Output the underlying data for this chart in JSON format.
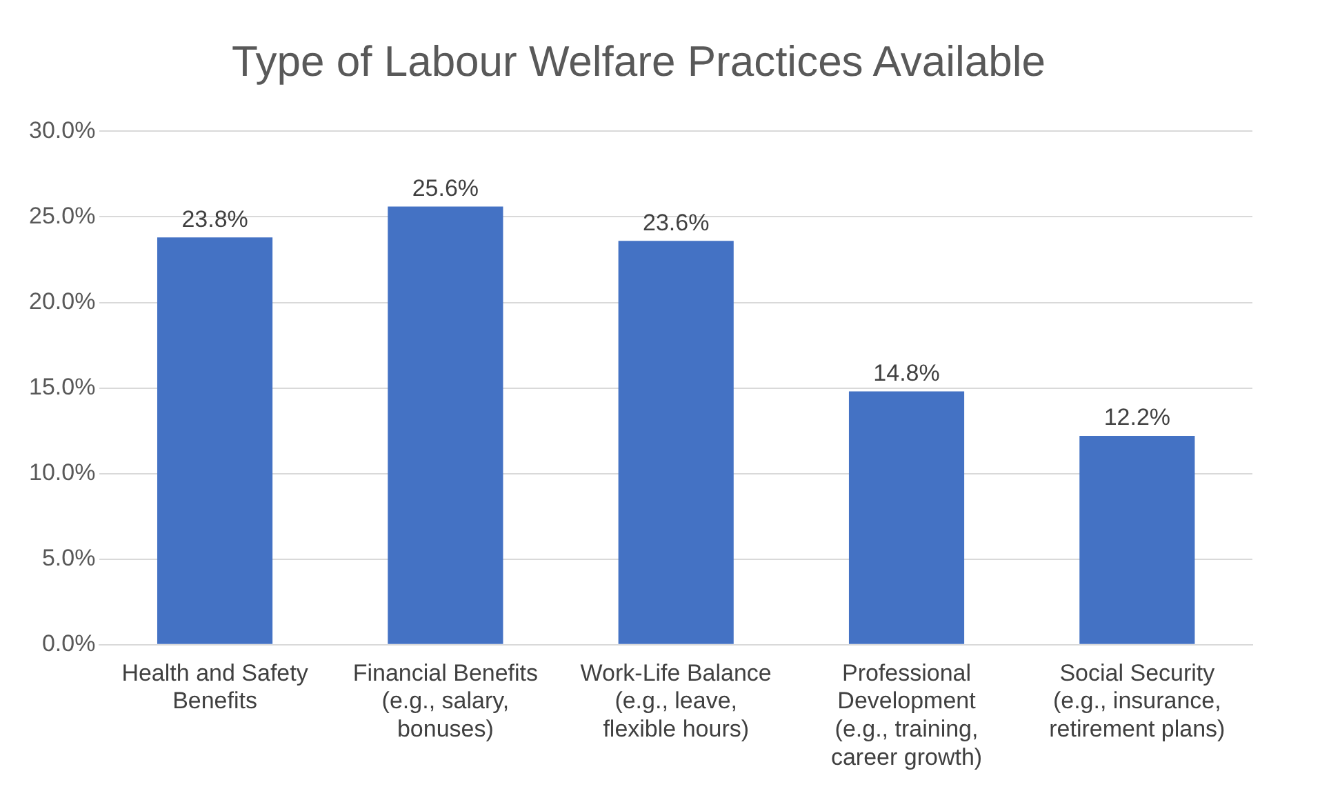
{
  "chart_data": {
    "type": "bar",
    "title": "Type of Labour Welfare Practices Available",
    "categories": [
      "Health and Safety Benefits",
      "Financial Benefits (e.g., salary, bonuses)",
      "Work-Life Balance (e.g., leave, flexible hours)",
      "Professional Development (e.g., training, career growth)",
      "Social Security (e.g., insurance, retirement plans)"
    ],
    "values": [
      23.8,
      25.6,
      23.6,
      14.8,
      12.2
    ],
    "value_labels": [
      "23.8%",
      "25.6%",
      "23.6%",
      "14.8%",
      "12.2%"
    ],
    "color": "#4472c4",
    "ylim": [
      0,
      30
    ],
    "yticks": [
      {
        "value": 0,
        "label": "0.0%"
      },
      {
        "value": 5,
        "label": "5.0%"
      },
      {
        "value": 10,
        "label": "10.0%"
      },
      {
        "value": 15,
        "label": "15.0%"
      },
      {
        "value": 20,
        "label": "20.0%"
      },
      {
        "value": 25,
        "label": "25.0%"
      },
      {
        "value": 30,
        "label": "30.0%"
      }
    ],
    "grid": "y",
    "legend": false
  }
}
